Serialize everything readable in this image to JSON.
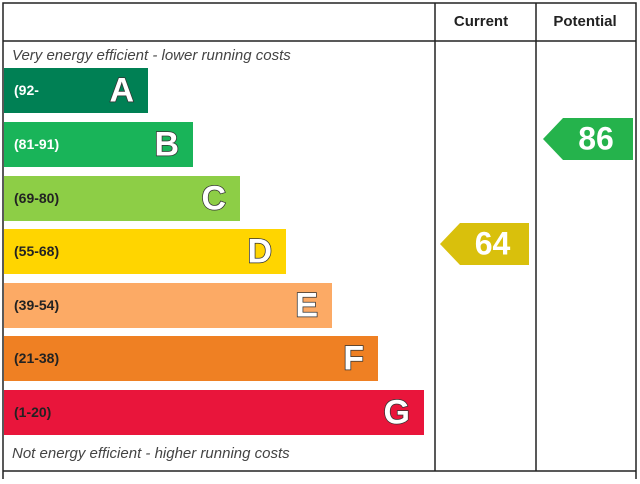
{
  "header": {
    "current": "Current",
    "potential": "Potential"
  },
  "top_note": "Very energy efficient - lower running costs",
  "bottom_note": "Not energy efficient - higher running costs",
  "bands": [
    {
      "range": "(92-",
      "letter": "A",
      "color": "#008054"
    },
    {
      "range": "(81-91)",
      "letter": "B",
      "color": "#19b459"
    },
    {
      "range": "(69-80)",
      "letter": "C",
      "color": "#8dce46"
    },
    {
      "range": "(55-68)",
      "letter": "D",
      "color": "#ffd500"
    },
    {
      "range": "(39-54)",
      "letter": "E",
      "color": "#fcaa65"
    },
    {
      "range": "(21-38)",
      "letter": "F",
      "color": "#ef8023"
    },
    {
      "range": "(1-20)",
      "letter": "G",
      "color": "#e9153b"
    }
  ],
  "current": {
    "value": 64,
    "color": "#d9c00c"
  },
  "potential": {
    "value": 86,
    "color": "#25b34c"
  }
}
